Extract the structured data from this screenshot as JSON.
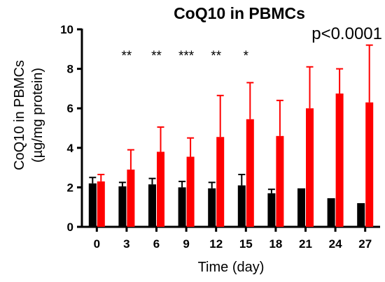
{
  "chart_data": {
    "type": "bar",
    "title": "CoQ10 in PBMCs",
    "xlabel": "Time (day)",
    "ylabel_line1": "CoQ10 in PBMCs",
    "ylabel_line2": "(µg/mg protein)",
    "ylim": [
      0,
      10
    ],
    "y_ticks": [
      "0",
      "2",
      "4",
      "6",
      "8",
      "10"
    ],
    "categories": [
      "0",
      "3",
      "6",
      "9",
      "12",
      "15",
      "18",
      "21",
      "24",
      "27"
    ],
    "series": [
      {
        "color": "#000000",
        "values": [
          2.2,
          2.05,
          2.15,
          2.0,
          1.95,
          2.1,
          1.7,
          1.95,
          1.45,
          1.2
        ],
        "error_plus": [
          0.3,
          0.2,
          0.3,
          0.3,
          0.3,
          0.55,
          0.2,
          0,
          0,
          0
        ]
      },
      {
        "color": "#ff0000",
        "values": [
          2.3,
          2.9,
          3.8,
          3.55,
          4.55,
          5.45,
          4.6,
          6.0,
          6.75,
          6.3
        ],
        "error_plus": [
          0.35,
          1.0,
          1.25,
          0.95,
          2.1,
          1.85,
          1.8,
          2.1,
          1.25,
          2.9
        ]
      }
    ],
    "significance": [
      {
        "category": "3",
        "label": "**"
      },
      {
        "category": "6",
        "label": "**"
      },
      {
        "category": "9",
        "label": "***"
      },
      {
        "category": "12",
        "label": "**"
      },
      {
        "category": "15",
        "label": "*"
      }
    ],
    "annotation": "p<0.0001",
    "grid": false,
    "legend": "none"
  }
}
